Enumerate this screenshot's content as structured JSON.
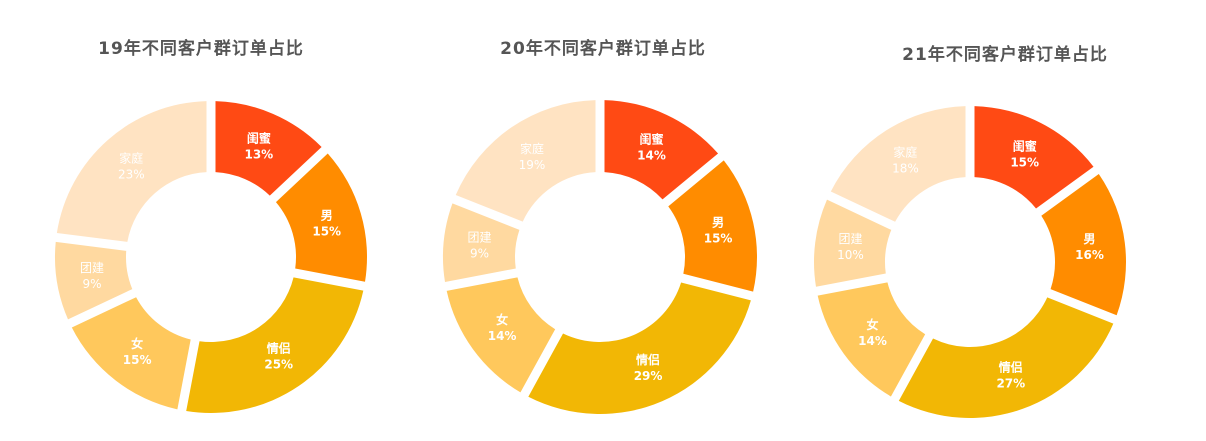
{
  "chart_data": [
    {
      "type": "pie",
      "title": "19年不同客户群订单占比",
      "slices": [
        {
          "label": "闺蜜",
          "value": 13,
          "value_label": "13%",
          "color": "#FF4A14"
        },
        {
          "label": "男",
          "value": 15,
          "value_label": "15%",
          "color": "#FF8C00"
        },
        {
          "label": "情侣",
          "value": 25,
          "value_label": "25%",
          "color": "#F2B705"
        },
        {
          "label": "女",
          "value": 15,
          "value_label": "15%",
          "color": "#FFC85C"
        },
        {
          "label": "团建",
          "value": 9,
          "value_label": "9%",
          "color": "#FFD9A0"
        },
        {
          "label": "家庭",
          "value": 23,
          "value_label": "23%",
          "color": "#FFE3C2"
        }
      ]
    },
    {
      "type": "pie",
      "title": "20年不同客户群订单占比",
      "slices": [
        {
          "label": "闺蜜",
          "value": 14,
          "value_label": "14%",
          "color": "#FF4A14"
        },
        {
          "label": "男",
          "value": 15,
          "value_label": "15%",
          "color": "#FF8C00"
        },
        {
          "label": "情侣",
          "value": 29,
          "value_label": "29%",
          "color": "#F2B705"
        },
        {
          "label": "女",
          "value": 14,
          "value_label": "14%",
          "color": "#FFC85C"
        },
        {
          "label": "团建",
          "value": 9,
          "value_label": "9%",
          "color": "#FFD9A0"
        },
        {
          "label": "家庭",
          "value": 19,
          "value_label": "19%",
          "color": "#FFE3C2"
        }
      ]
    },
    {
      "type": "pie",
      "title": "21年不同客户群订单占比",
      "slices": [
        {
          "label": "闺蜜",
          "value": 15,
          "value_label": "15%",
          "color": "#FF4A14"
        },
        {
          "label": "男",
          "value": 16,
          "value_label": "16%",
          "color": "#FF8C00"
        },
        {
          "label": "情侣",
          "value": 27,
          "value_label": "27%",
          "color": "#F2B705"
        },
        {
          "label": "女",
          "value": 14,
          "value_label": "14%",
          "color": "#FFC85C"
        },
        {
          "label": "团建",
          "value": 10,
          "value_label": "10%",
          "color": "#FFD9A0"
        },
        {
          "label": "家庭",
          "value": 18,
          "value_label": "18%",
          "color": "#FFE3C2"
        }
      ]
    }
  ]
}
